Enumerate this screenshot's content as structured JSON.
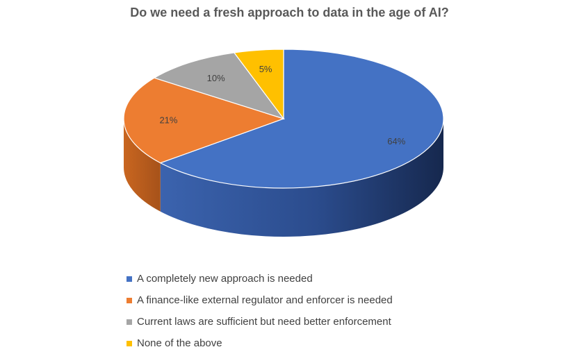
{
  "chart_data": {
    "type": "pie",
    "title": "Do we need a fresh approach to data in the age of AI?",
    "slices": [
      {
        "label": "A completely new approach is needed",
        "value": 64,
        "display": "64%",
        "color": "#4472C4",
        "side_color": "#2A4A86"
      },
      {
        "label": "A finance-like external regulator and enforcer is needed",
        "value": 21,
        "display": "21%",
        "color": "#ED7D31",
        "side_color": "#B4591F"
      },
      {
        "label": "Current laws are sufficient but need better enforcement",
        "value": 10,
        "display": "10%",
        "color": "#A5A5A5",
        "side_color": "#7A7A7A"
      },
      {
        "label": "None of the above",
        "value": 5,
        "display": "5%",
        "color": "#FFC000",
        "side_color": "#BF9000"
      }
    ],
    "legend_position": "bottom",
    "style": "3d"
  }
}
